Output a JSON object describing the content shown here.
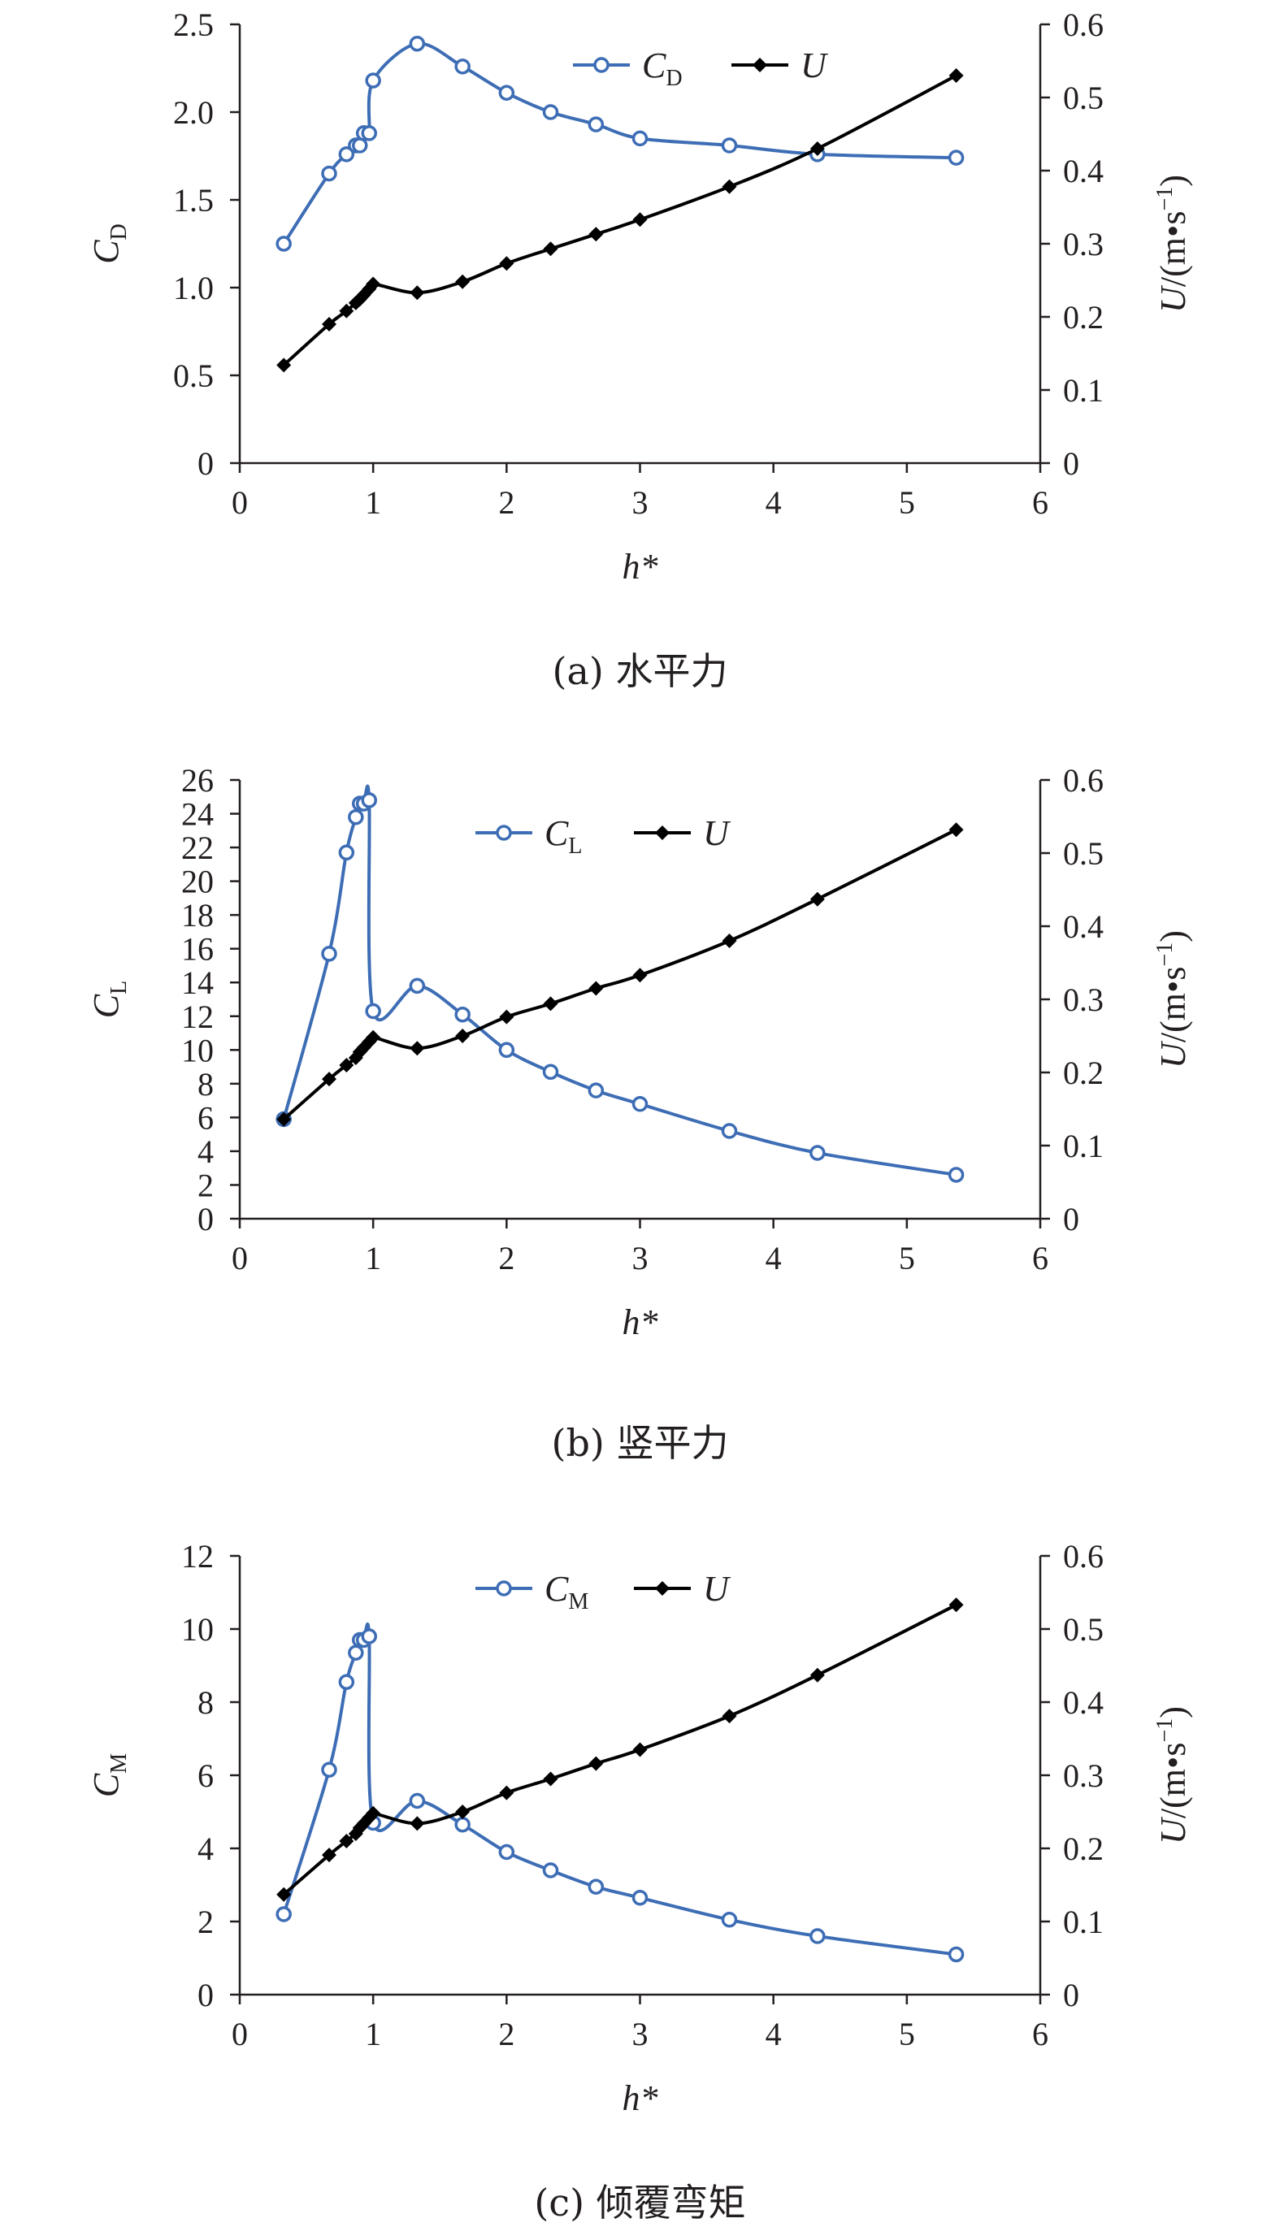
{
  "chart_data": [
    {
      "type": "line",
      "caption": "(a) 水平力",
      "xlabel": "h*",
      "ylabel": {
        "main": "C",
        "sub": "D"
      },
      "y2label": {
        "main": "U",
        "unit": "/(m•s",
        "sup": "−1",
        "close": ")"
      },
      "xlim": [
        0,
        6
      ],
      "xticks": [
        "0",
        "1",
        "2",
        "3",
        "4",
        "5",
        "6"
      ],
      "ylim": [
        0,
        2.5
      ],
      "yticks": [
        "0",
        "0.5",
        "1.0",
        "1.5",
        "2.0",
        "2.5"
      ],
      "y2lim": [
        0,
        0.6
      ],
      "y2ticks": [
        "0",
        "0.1",
        "0.2",
        "0.3",
        "0.4",
        "0.5",
        "0.6"
      ],
      "legend_position": "top-right",
      "series": [
        {
          "name": "C",
          "name_sub": "D",
          "axis": "left",
          "color": "#3d6db5",
          "marker": "circle",
          "x": [
            0.33,
            0.67,
            0.8,
            0.87,
            0.9,
            0.93,
            0.97,
            1.0,
            1.33,
            1.67,
            2.0,
            2.33,
            2.67,
            3.0,
            3.67,
            4.33,
            5.37
          ],
          "y": [
            1.25,
            1.65,
            1.76,
            1.81,
            1.81,
            1.88,
            1.88,
            2.18,
            2.39,
            2.26,
            2.11,
            2.0,
            1.93,
            1.85,
            1.81,
            1.76,
            1.74
          ]
        },
        {
          "name": "U",
          "axis": "right",
          "color": "#000000",
          "marker": "diamond",
          "x": [
            0.33,
            0.67,
            0.8,
            0.87,
            0.9,
            0.93,
            0.97,
            1.0,
            1.33,
            1.67,
            2.0,
            2.33,
            2.67,
            3.0,
            3.67,
            4.33,
            5.37
          ],
          "y": [
            0.134,
            0.19,
            0.208,
            0.219,
            0.224,
            0.23,
            0.238,
            0.245,
            0.233,
            0.248,
            0.273,
            0.293,
            0.313,
            0.333,
            0.378,
            0.43,
            0.53
          ]
        }
      ]
    },
    {
      "type": "line",
      "caption": "(b) 竖平力",
      "xlabel": "h*",
      "ylabel": {
        "main": "C",
        "sub": "L"
      },
      "y2label": {
        "main": "U",
        "unit": "/(m•s",
        "sup": "−1",
        "close": ")"
      },
      "xlim": [
        0,
        6
      ],
      "xticks": [
        "0",
        "1",
        "2",
        "3",
        "4",
        "5",
        "6"
      ],
      "ylim": [
        0,
        26
      ],
      "yticks": [
        "0",
        "2",
        "4",
        "6",
        "8",
        "10",
        "12",
        "14",
        "16",
        "18",
        "20",
        "22",
        "24",
        "26"
      ],
      "y2lim": [
        0,
        0.6
      ],
      "y2ticks": [
        "0",
        "0.1",
        "0.2",
        "0.3",
        "0.4",
        "0.5",
        "0.6"
      ],
      "legend_position": "top-center",
      "series": [
        {
          "name": "C",
          "name_sub": "L",
          "axis": "left",
          "color": "#3d6db5",
          "marker": "circle",
          "x": [
            0.33,
            0.67,
            0.8,
            0.87,
            0.9,
            0.93,
            0.97,
            1.0,
            1.33,
            1.67,
            2.0,
            2.33,
            2.67,
            3.0,
            3.67,
            4.33,
            5.37
          ],
          "y": [
            5.9,
            15.7,
            21.7,
            23.8,
            24.6,
            24.6,
            24.8,
            12.3,
            13.8,
            12.1,
            10.0,
            8.7,
            7.6,
            6.8,
            5.2,
            3.9,
            2.6
          ]
        },
        {
          "name": "U",
          "axis": "right",
          "color": "#000000",
          "marker": "diamond",
          "x": [
            0.33,
            0.67,
            0.8,
            0.87,
            0.9,
            0.93,
            0.97,
            1.0,
            1.33,
            1.67,
            2.0,
            2.33,
            2.67,
            3.0,
            3.67,
            4.33,
            5.37
          ],
          "y": [
            0.136,
            0.191,
            0.21,
            0.22,
            0.228,
            0.234,
            0.242,
            0.248,
            0.233,
            0.25,
            0.276,
            0.294,
            0.315,
            0.333,
            0.38,
            0.437,
            0.532
          ]
        }
      ]
    },
    {
      "type": "line",
      "caption": "(c) 倾覆弯矩",
      "xlabel": "h*",
      "ylabel": {
        "main": "C",
        "sub": "M"
      },
      "y2label": {
        "main": "U",
        "unit": "/(m•s",
        "sup": "−1",
        "close": ")"
      },
      "xlim": [
        0,
        6
      ],
      "xticks": [
        "0",
        "1",
        "2",
        "3",
        "4",
        "5",
        "6"
      ],
      "ylim": [
        0,
        12
      ],
      "yticks": [
        "0",
        "2",
        "4",
        "6",
        "8",
        "10",
        "12"
      ],
      "y2lim": [
        0,
        0.6
      ],
      "y2ticks": [
        "0",
        "0.1",
        "0.2",
        "0.3",
        "0.4",
        "0.5",
        "0.6"
      ],
      "legend_position": "top-center",
      "series": [
        {
          "name": "C",
          "name_sub": "M",
          "axis": "left",
          "color": "#3d6db5",
          "marker": "circle",
          "x": [
            0.33,
            0.67,
            0.8,
            0.87,
            0.9,
            0.93,
            0.97,
            1.0,
            1.33,
            1.67,
            2.0,
            2.33,
            2.67,
            3.0,
            3.67,
            4.33,
            5.37
          ],
          "y": [
            2.2,
            6.15,
            8.55,
            9.35,
            9.7,
            9.7,
            9.8,
            4.7,
            5.3,
            4.65,
            3.9,
            3.4,
            2.95,
            2.65,
            2.05,
            1.6,
            1.1
          ]
        },
        {
          "name": "U",
          "axis": "right",
          "color": "#000000",
          "marker": "diamond",
          "x": [
            0.33,
            0.67,
            0.8,
            0.87,
            0.9,
            0.93,
            0.97,
            1.0,
            1.33,
            1.67,
            2.0,
            2.33,
            2.67,
            3.0,
            3.67,
            4.33,
            5.37
          ],
          "y": [
            0.137,
            0.191,
            0.21,
            0.22,
            0.228,
            0.234,
            0.242,
            0.248,
            0.234,
            0.25,
            0.276,
            0.295,
            0.316,
            0.335,
            0.381,
            0.437,
            0.533
          ]
        }
      ]
    }
  ]
}
